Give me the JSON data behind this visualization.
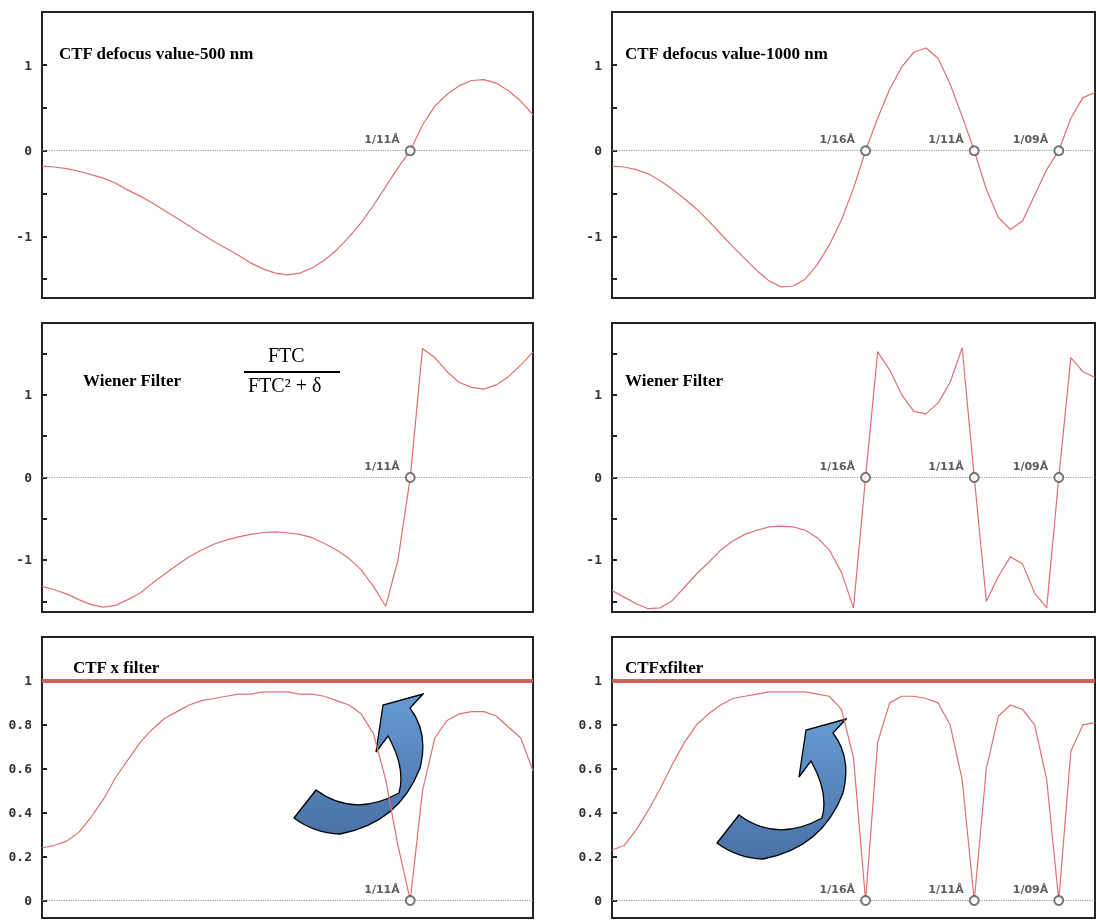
{
  "chart_data": [
    {
      "type": "line",
      "title": "CTF defocus value-500 nm",
      "categories": [
        null,
        null,
        null,
        null,
        null,
        null,
        null,
        null,
        null,
        null,
        null,
        null,
        null,
        null,
        null,
        null,
        null,
        null,
        null,
        null,
        null,
        null,
        null,
        null,
        null,
        null,
        null,
        null,
        null,
        null,
        null,
        null,
        null,
        null,
        null,
        null,
        null,
        null,
        null,
        null,
        null
      ],
      "tick_labels": "y",
      "ylim": [
        -1.72,
        1.62
      ],
      "yticks": [
        {
          "value": -1.5,
          "label": null
        },
        -1,
        {
          "value": -0.5,
          "label": null
        },
        0,
        {
          "value": 0.5,
          "label": null
        },
        1
      ],
      "ref_lines": [
        {
          "axis": "y",
          "value": 0,
          "color": "#999999",
          "line_style": "dotted"
        }
      ],
      "series": [
        {
          "type": "line",
          "color": "#e07070",
          "values": [
            -0.18,
            -0.19,
            -0.21,
            -0.24,
            -0.28,
            -0.32,
            -0.38,
            -0.46,
            -0.53,
            -0.61,
            -0.7,
            -0.79,
            -0.88,
            -0.97,
            -1.06,
            -1.14,
            -1.22,
            -1.31,
            -1.38,
            -1.43,
            -1.45,
            -1.43,
            -1.37,
            -1.28,
            -1.16,
            -1.01,
            -0.84,
            -0.64,
            -0.42,
            -0.2,
            0,
            0.3,
            0.52,
            0.66,
            0.76,
            0.82,
            0.83,
            0.79,
            0.7,
            0.58,
            0.42
          ]
        },
        {
          "type": "scatter",
          "marker": "circle",
          "color": "#555555",
          "values": [
            null,
            null,
            null,
            null,
            null,
            null,
            null,
            null,
            null,
            null,
            null,
            null,
            null,
            null,
            null,
            null,
            null,
            null,
            null,
            null,
            null,
            null,
            null,
            null,
            null,
            null,
            null,
            null,
            null,
            null,
            0,
            null,
            null,
            null,
            null,
            null,
            null,
            null,
            null,
            null,
            null
          ],
          "value_labels": [
            null,
            null,
            null,
            null,
            null,
            null,
            null,
            null,
            null,
            null,
            null,
            null,
            null,
            null,
            null,
            null,
            null,
            null,
            null,
            null,
            null,
            null,
            null,
            null,
            null,
            null,
            null,
            null,
            null,
            null,
            "1/11Å",
            null,
            null,
            null,
            null,
            null,
            null,
            null,
            null,
            null,
            null
          ]
        }
      ]
    },
    {
      "type": "line",
      "title": "CTF defocus value-1000 nm",
      "categories": [
        null,
        null,
        null,
        null,
        null,
        null,
        null,
        null,
        null,
        null,
        null,
        null,
        null,
        null,
        null,
        null,
        null,
        null,
        null,
        null,
        null,
        null,
        null,
        null,
        null,
        null,
        null,
        null,
        null,
        null,
        null,
        null,
        null,
        null,
        null,
        null,
        null,
        null,
        null,
        null,
        null
      ],
      "tick_labels": "y",
      "ylim": [
        -1.72,
        1.62
      ],
      "yticks": [
        {
          "value": -1.5,
          "label": null
        },
        -1,
        {
          "value": -0.5,
          "label": null
        },
        0,
        {
          "value": 0.5,
          "label": null
        },
        1
      ],
      "ref_lines": [
        {
          "axis": "y",
          "value": 0,
          "color": "#999999",
          "line_style": "dotted"
        }
      ],
      "series": [
        {
          "type": "line",
          "color": "#e07070",
          "values": [
            -0.18,
            -0.19,
            -0.22,
            -0.27,
            -0.35,
            -0.45,
            -0.56,
            -0.68,
            -0.82,
            -0.97,
            -1.12,
            -1.26,
            -1.4,
            -1.52,
            -1.59,
            -1.58,
            -1.5,
            -1.33,
            -1.1,
            -0.81,
            -0.44,
            0,
            0.38,
            0.72,
            0.98,
            1.15,
            1.2,
            1.08,
            0.78,
            0.4,
            0,
            -0.45,
            -0.78,
            -0.92,
            -0.82,
            -0.52,
            -0.22,
            0,
            0.38,
            0.62,
            0.68
          ]
        },
        {
          "type": "scatter",
          "marker": "circle",
          "color": "#555555",
          "values": [
            null,
            null,
            null,
            null,
            null,
            null,
            null,
            null,
            null,
            null,
            null,
            null,
            null,
            null,
            null,
            null,
            null,
            null,
            null,
            null,
            null,
            0,
            null,
            null,
            null,
            null,
            null,
            null,
            null,
            null,
            0,
            null,
            null,
            null,
            null,
            null,
            null,
            0,
            null,
            null,
            null
          ],
          "value_labels": [
            null,
            null,
            null,
            null,
            null,
            null,
            null,
            null,
            null,
            null,
            null,
            null,
            null,
            null,
            null,
            null,
            null,
            null,
            null,
            null,
            null,
            "1/16Å",
            null,
            null,
            null,
            null,
            null,
            null,
            null,
            null,
            "1/11Å",
            null,
            null,
            null,
            null,
            null,
            null,
            "1/09Å",
            null,
            null,
            null
          ]
        }
      ]
    },
    {
      "type": "line",
      "title": "Wiener Filter",
      "annotations": [
        "FTC",
        "FTC² + δ"
      ],
      "categories": [
        null,
        null,
        null,
        null,
        null,
        null,
        null,
        null,
        null,
        null,
        null,
        null,
        null,
        null,
        null,
        null,
        null,
        null,
        null,
        null,
        null,
        null,
        null,
        null,
        null,
        null,
        null,
        null,
        null,
        null,
        null,
        null,
        null,
        null,
        null,
        null,
        null,
        null,
        null,
        null,
        null
      ],
      "tick_labels": "y",
      "ylim": [
        -1.63,
        1.87
      ],
      "yticks": [
        {
          "value": -1.5,
          "label": null
        },
        -1,
        {
          "value": -0.5,
          "label": null
        },
        0,
        {
          "value": 0.5,
          "label": null
        },
        1,
        {
          "value": 1.5,
          "label": null
        }
      ],
      "ref_lines": [
        {
          "axis": "y",
          "value": 0,
          "color": "#999999",
          "line_style": "dotted"
        }
      ],
      "series": [
        {
          "type": "line",
          "color": "#e07070",
          "values": [
            -1.32,
            -1.36,
            -1.41,
            -1.48,
            -1.54,
            -1.57,
            -1.55,
            -1.48,
            -1.4,
            -1.28,
            -1.17,
            -1.06,
            -0.96,
            -0.88,
            -0.81,
            -0.76,
            -0.72,
            -0.69,
            -0.67,
            -0.66,
            -0.67,
            -0.69,
            -0.73,
            -0.8,
            -0.88,
            -0.98,
            -1.12,
            -1.32,
            -1.56,
            -1.0,
            0,
            1.56,
            1.45,
            1.28,
            1.15,
            1.09,
            1.07,
            1.12,
            1.22,
            1.36,
            1.52
          ]
        },
        {
          "type": "scatter",
          "marker": "circle",
          "color": "#555555",
          "values": [
            null,
            null,
            null,
            null,
            null,
            null,
            null,
            null,
            null,
            null,
            null,
            null,
            null,
            null,
            null,
            null,
            null,
            null,
            null,
            null,
            null,
            null,
            null,
            null,
            null,
            null,
            null,
            null,
            null,
            null,
            0,
            null,
            null,
            null,
            null,
            null,
            null,
            null,
            null,
            null,
            null
          ],
          "value_labels": [
            null,
            null,
            null,
            null,
            null,
            null,
            null,
            null,
            null,
            null,
            null,
            null,
            null,
            null,
            null,
            null,
            null,
            null,
            null,
            null,
            null,
            null,
            null,
            null,
            null,
            null,
            null,
            null,
            null,
            null,
            "1/11Å",
            null,
            null,
            null,
            null,
            null,
            null,
            null,
            null,
            null,
            null
          ]
        }
      ]
    },
    {
      "type": "line",
      "title": "Wiener Filter",
      "categories": [
        null,
        null,
        null,
        null,
        null,
        null,
        null,
        null,
        null,
        null,
        null,
        null,
        null,
        null,
        null,
        null,
        null,
        null,
        null,
        null,
        null,
        null,
        null,
        null,
        null,
        null,
        null,
        null,
        null,
        null,
        null,
        null,
        null,
        null,
        null,
        null,
        null,
        null,
        null,
        null,
        null
      ],
      "tick_labels": "y",
      "ylim": [
        -1.63,
        1.87
      ],
      "yticks": [
        {
          "value": -1.5,
          "label": null
        },
        -1,
        {
          "value": -0.5,
          "label": null
        },
        0,
        {
          "value": 0.5,
          "label": null
        },
        1,
        {
          "value": 1.5,
          "label": null
        }
      ],
      "ref_lines": [
        {
          "axis": "y",
          "value": 0,
          "color": "#999999",
          "line_style": "dotted"
        }
      ],
      "series": [
        {
          "type": "line",
          "color": "#e07070",
          "values": [
            -1.37,
            -1.45,
            -1.53,
            -1.59,
            -1.58,
            -1.49,
            -1.33,
            -1.17,
            -1.03,
            -0.88,
            -0.77,
            -0.69,
            -0.64,
            -0.6,
            -0.59,
            -0.6,
            -0.64,
            -0.73,
            -0.88,
            -1.15,
            -1.58,
            0,
            1.52,
            1.3,
            1.0,
            0.8,
            0.77,
            0.9,
            1.15,
            1.57,
            0,
            -1.5,
            -1.2,
            -0.96,
            -1.05,
            -1.4,
            -1.58,
            0,
            1.45,
            1.28,
            1.21
          ]
        },
        {
          "type": "scatter",
          "marker": "circle",
          "color": "#555555",
          "values": [
            null,
            null,
            null,
            null,
            null,
            null,
            null,
            null,
            null,
            null,
            null,
            null,
            null,
            null,
            null,
            null,
            null,
            null,
            null,
            null,
            null,
            0,
            null,
            null,
            null,
            null,
            null,
            null,
            null,
            null,
            0,
            null,
            null,
            null,
            null,
            null,
            null,
            0,
            null,
            null,
            null
          ],
          "value_labels": [
            null,
            null,
            null,
            null,
            null,
            null,
            null,
            null,
            null,
            null,
            null,
            null,
            null,
            null,
            null,
            null,
            null,
            null,
            null,
            null,
            null,
            "1/16Å",
            null,
            null,
            null,
            null,
            null,
            null,
            null,
            null,
            "1/11Å",
            null,
            null,
            null,
            null,
            null,
            null,
            "1/09Å",
            null,
            null,
            null
          ]
        }
      ]
    },
    {
      "type": "line",
      "title": "CTF x filter",
      "categories": [
        null,
        null,
        null,
        null,
        null,
        null,
        null,
        null,
        null,
        null,
        null,
        null,
        null,
        null,
        null,
        null,
        null,
        null,
        null,
        null,
        null,
        null,
        null,
        null,
        null,
        null,
        null,
        null,
        null,
        null,
        null,
        null,
        null,
        null,
        null,
        null,
        null,
        null,
        null,
        null,
        null
      ],
      "tick_labels": "y",
      "ylim": [
        -0.08,
        1.2
      ],
      "yticks": [
        0,
        {
          "value": 0.2,
          "label": "0.2"
        },
        {
          "value": 0.4,
          "label": "0.4"
        },
        {
          "value": 0.6,
          "label": "0.6"
        },
        {
          "value": 0.8,
          "label": "0.8"
        },
        1
      ],
      "ref_lines": [
        {
          "axis": "y",
          "value": 0,
          "color": "#999999",
          "line_style": "dotted"
        },
        {
          "axis": "y",
          "value": 1,
          "color": "#d0605a",
          "line_style": "solid"
        }
      ],
      "series": [
        {
          "type": "line",
          "color": "#e07070",
          "values": [
            0.24,
            0.25,
            0.27,
            0.31,
            0.38,
            0.46,
            0.56,
            0.64,
            0.72,
            0.78,
            0.83,
            0.86,
            0.89,
            0.91,
            0.92,
            0.93,
            0.94,
            0.94,
            0.95,
            0.95,
            0.95,
            0.94,
            0.94,
            0.93,
            0.91,
            0.89,
            0.85,
            0.76,
            0.55,
            0.25,
            0,
            0.5,
            0.74,
            0.82,
            0.85,
            0.86,
            0.86,
            0.84,
            0.79,
            0.74,
            0.59
          ]
        },
        {
          "type": "scatter",
          "marker": "circle",
          "color": "#555555",
          "values": [
            null,
            null,
            null,
            null,
            null,
            null,
            null,
            null,
            null,
            null,
            null,
            null,
            null,
            null,
            null,
            null,
            null,
            null,
            null,
            null,
            null,
            null,
            null,
            null,
            null,
            null,
            null,
            null,
            null,
            null,
            0,
            null,
            null,
            null,
            null,
            null,
            null,
            null,
            null,
            null,
            null
          ],
          "value_labels": [
            null,
            null,
            null,
            null,
            null,
            null,
            null,
            null,
            null,
            null,
            null,
            null,
            null,
            null,
            null,
            null,
            null,
            null,
            null,
            null,
            null,
            null,
            null,
            null,
            null,
            null,
            null,
            null,
            null,
            null,
            "1/11Å",
            null,
            null,
            null,
            null,
            null,
            null,
            null,
            null,
            null,
            null
          ]
        }
      ]
    },
    {
      "type": "line",
      "title": "CTFxfilter",
      "categories": [
        null,
        null,
        null,
        null,
        null,
        null,
        null,
        null,
        null,
        null,
        null,
        null,
        null,
        null,
        null,
        null,
        null,
        null,
        null,
        null,
        null,
        null,
        null,
        null,
        null,
        null,
        null,
        null,
        null,
        null,
        null,
        null,
        null,
        null,
        null,
        null,
        null,
        null,
        null,
        null,
        null
      ],
      "tick_labels": "y",
      "ylim": [
        -0.08,
        1.2
      ],
      "yticks": [
        0,
        {
          "value": 0.2,
          "label": "0.2"
        },
        {
          "value": 0.4,
          "label": "0.4"
        },
        {
          "value": 0.6,
          "label": "0.6"
        },
        {
          "value": 0.8,
          "label": "0.8"
        },
        1
      ],
      "ref_lines": [
        {
          "axis": "y",
          "value": 0,
          "color": "#999999",
          "line_style": "dotted"
        },
        {
          "axis": "y",
          "value": 1,
          "color": "#d0605a",
          "line_style": "solid"
        }
      ],
      "series": [
        {
          "type": "line",
          "color": "#e07070",
          "values": [
            0.23,
            0.25,
            0.32,
            0.41,
            0.51,
            0.62,
            0.72,
            0.8,
            0.85,
            0.89,
            0.92,
            0.93,
            0.94,
            0.95,
            0.95,
            0.95,
            0.95,
            0.94,
            0.93,
            0.87,
            0.65,
            0,
            0.72,
            0.9,
            0.93,
            0.93,
            0.92,
            0.9,
            0.8,
            0.55,
            0,
            0.6,
            0.84,
            0.89,
            0.87,
            0.8,
            0.55,
            0,
            0.68,
            0.8,
            0.81
          ]
        },
        {
          "type": "scatter",
          "marker": "circle",
          "color": "#555555",
          "values": [
            null,
            null,
            null,
            null,
            null,
            null,
            null,
            null,
            null,
            null,
            null,
            null,
            null,
            null,
            null,
            null,
            null,
            null,
            null,
            null,
            null,
            0,
            null,
            null,
            null,
            null,
            null,
            null,
            null,
            null,
            0,
            null,
            null,
            null,
            null,
            null,
            null,
            0,
            null,
            null,
            null
          ],
          "value_labels": [
            null,
            null,
            null,
            null,
            null,
            null,
            null,
            null,
            null,
            null,
            null,
            null,
            null,
            null,
            null,
            null,
            null,
            null,
            null,
            null,
            null,
            "1/16Å",
            null,
            null,
            null,
            null,
            null,
            null,
            null,
            null,
            "1/11Å",
            null,
            null,
            null,
            null,
            null,
            null,
            "1/09Å",
            null,
            null,
            null
          ]
        }
      ]
    }
  ]
}
